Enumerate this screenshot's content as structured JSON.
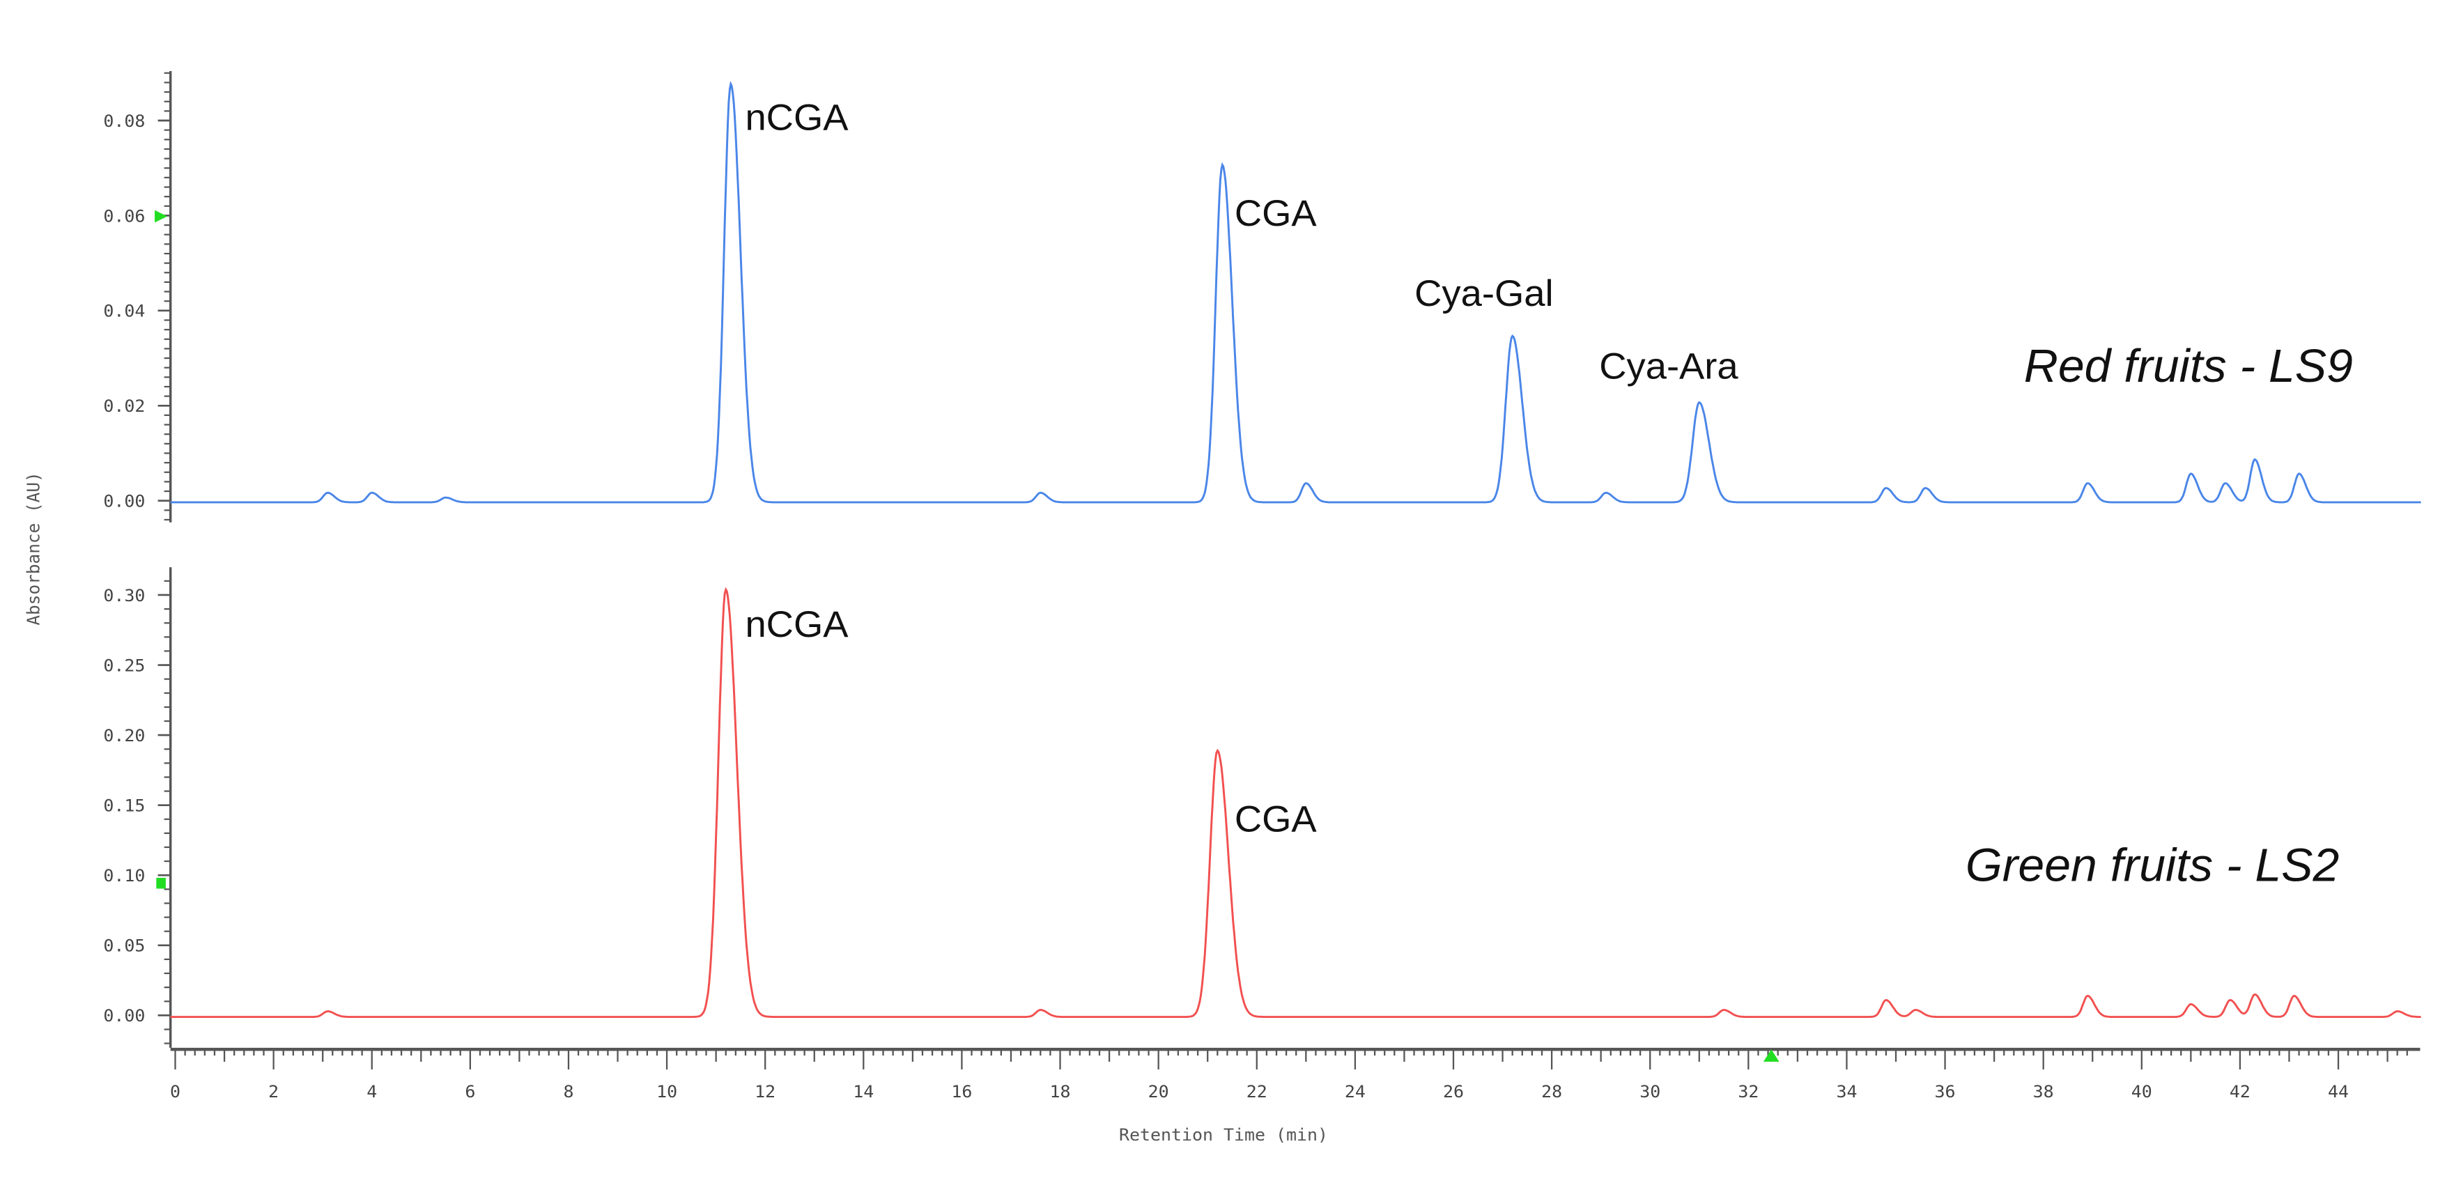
{
  "chart_data": [
    {
      "type": "line",
      "title": "Red fruits -  LS9",
      "xlabel": "Retention Time (min)",
      "ylabel": "Absorbance  (AU)",
      "xlim": [
        -0.2,
        45.7
      ],
      "ylim": [
        -0.008,
        0.09
      ],
      "y_ticks": [
        "0.00",
        "0.02",
        "0.04",
        "0.06",
        "0.08"
      ],
      "color": "#4a86e8",
      "grid": false,
      "peaks": [
        {
          "label": "nCGA",
          "rt": 11.3,
          "abs": 0.088
        },
        {
          "label": "CGA",
          "rt": 21.3,
          "abs": 0.071
        },
        {
          "label": "Cya-Gal",
          "rt": 27.2,
          "abs": 0.035
        },
        {
          "label": "Cya-Ara",
          "rt": 31.0,
          "abs": 0.021
        }
      ],
      "minor_peaks": [
        {
          "rt": 3.1,
          "abs": 0.002
        },
        {
          "rt": 4.0,
          "abs": 0.002
        },
        {
          "rt": 5.5,
          "abs": 0.001
        },
        {
          "rt": 17.6,
          "abs": 0.002
        },
        {
          "rt": 23.0,
          "abs": 0.004
        },
        {
          "rt": 29.1,
          "abs": 0.002
        },
        {
          "rt": 34.8,
          "abs": 0.003
        },
        {
          "rt": 35.6,
          "abs": 0.003
        },
        {
          "rt": 38.9,
          "abs": 0.004
        },
        {
          "rt": 41.0,
          "abs": 0.006
        },
        {
          "rt": 41.7,
          "abs": 0.004
        },
        {
          "rt": 42.3,
          "abs": 0.009
        },
        {
          "rt": 43.2,
          "abs": 0.006
        }
      ]
    },
    {
      "type": "line",
      "title": "Green fruits -  LS2",
      "xlabel": "Retention Time (min)",
      "ylabel": "Absorbance  (AU)",
      "xlim": [
        -0.2,
        45.7
      ],
      "ylim": [
        -0.03,
        0.32
      ],
      "y_ticks": [
        "0.00",
        "0.05",
        "0.10",
        "0.15",
        "0.20",
        "0.25",
        "0.30"
      ],
      "color": "#f25050",
      "grid": false,
      "peaks": [
        {
          "label": "nCGA",
          "rt": 11.2,
          "abs": 0.305
        },
        {
          "label": "CGA",
          "rt": 21.2,
          "abs": 0.19
        }
      ],
      "minor_peaks": [
        {
          "rt": 3.1,
          "abs": 0.004
        },
        {
          "rt": 17.6,
          "abs": 0.005
        },
        {
          "rt": 31.5,
          "abs": 0.005
        },
        {
          "rt": 34.8,
          "abs": 0.012
        },
        {
          "rt": 35.4,
          "abs": 0.005
        },
        {
          "rt": 38.9,
          "abs": 0.015
        },
        {
          "rt": 41.0,
          "abs": 0.009
        },
        {
          "rt": 41.8,
          "abs": 0.012
        },
        {
          "rt": 42.3,
          "abs": 0.016
        },
        {
          "rt": 43.1,
          "abs": 0.015
        },
        {
          "rt": 45.2,
          "abs": 0.004
        }
      ]
    }
  ],
  "axes": {
    "x_title": "Retention Time (min)",
    "y_title": "Absorbance  (AU)",
    "x_ticks": [
      "0",
      "2",
      "4",
      "6",
      "8",
      "10",
      "12",
      "14",
      "16",
      "18",
      "20",
      "22",
      "24",
      "26",
      "28",
      "30",
      "32",
      "34",
      "36",
      "38",
      "40",
      "42",
      "44"
    ],
    "top_y_ticks": [
      "0.08",
      "0.06",
      "0.04",
      "0.02",
      "0.00"
    ],
    "bottom_y_ticks": [
      "0.30",
      "0.25",
      "0.20",
      "0.15",
      "0.10",
      "0.05",
      "0.00"
    ]
  },
  "labels": {
    "top_peaks": [
      "nCGA",
      "CGA",
      "Cya-Gal",
      "Cya-Ara"
    ],
    "bottom_peaks": [
      "nCGA",
      "CGA"
    ],
    "top_sample": "Red fruits -  LS9",
    "bottom_sample": "Green fruits -  LS2"
  },
  "colors": {
    "top_trace": "#4a86e8",
    "bottom_trace": "#f25050",
    "marker": "#22dd22",
    "axis": "#555555"
  }
}
